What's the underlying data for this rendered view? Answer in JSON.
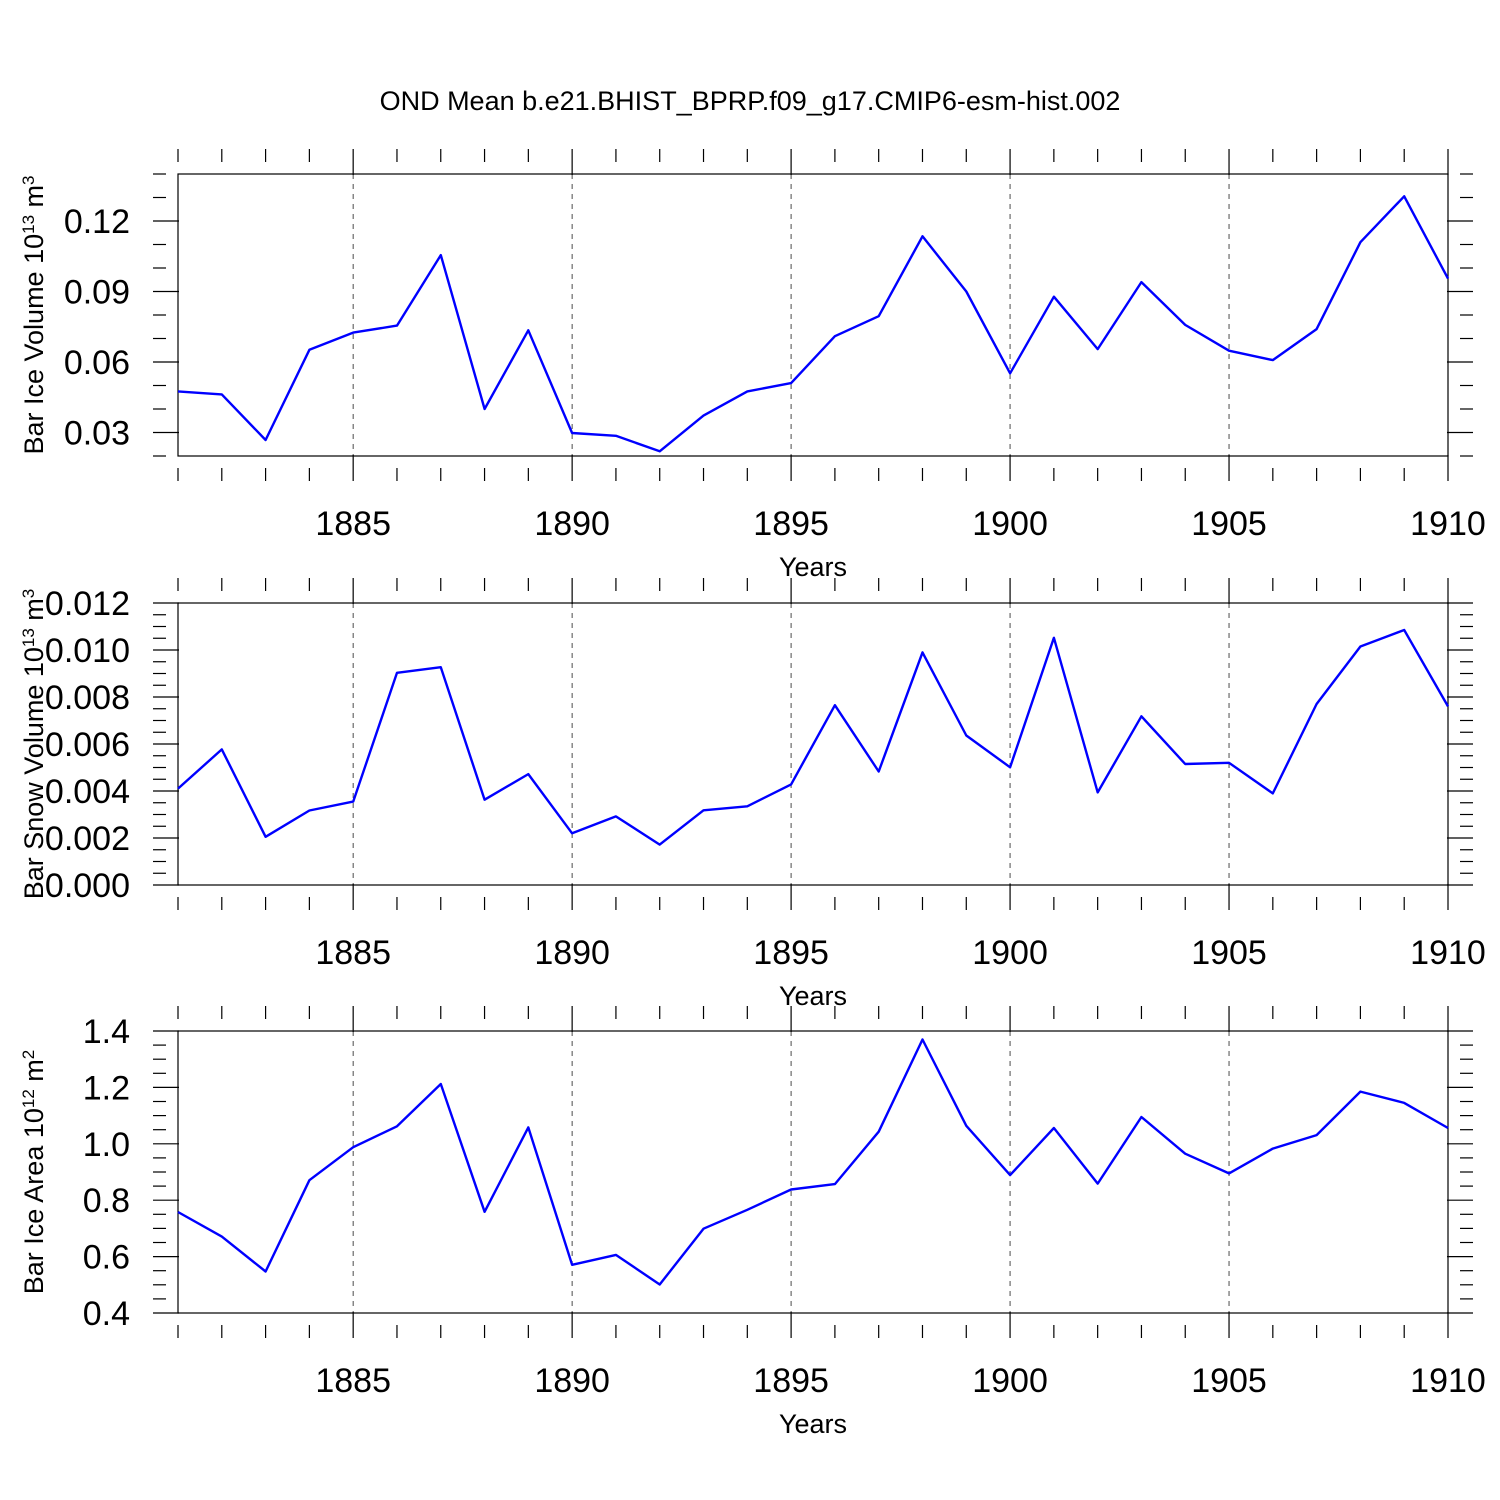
{
  "figure_title": "OND Mean b.e21.BHIST_BPRP.f09_g17.CMIP6-esm-hist.002",
  "colors": {
    "series": "#0000ff",
    "axes": "#000000",
    "background": "#ffffff"
  },
  "chart_data": [
    {
      "type": "line",
      "title": "",
      "ylabel_main": "Bar Ice Volume 10",
      "ylabel_sup": "13",
      "ylabel_unit": " m",
      "ylabel_unit_sup": "3",
      "xlabel": "Years",
      "xlim": [
        1881,
        1910
      ],
      "ylim": [
        0.02,
        0.14
      ],
      "x_ticks": [
        1885,
        1890,
        1895,
        1900,
        1905,
        1910
      ],
      "x_tick_labels": [
        "1885",
        "1890",
        "1895",
        "1900",
        "1905",
        "1910"
      ],
      "x_minor_step": 1,
      "y_ticks": [
        0.03,
        0.06,
        0.09,
        0.12
      ],
      "y_tick_labels": [
        "0.03",
        "0.06",
        "0.09",
        "0.12"
      ],
      "y_minor_step": 0.01,
      "grid": "dashed vertical at major x ticks",
      "series": [
        {
          "name": "Bar Ice Volume",
          "x": [
            1881,
            1882,
            1883,
            1884,
            1885,
            1886,
            1887,
            1888,
            1889,
            1890,
            1891,
            1892,
            1893,
            1894,
            1895,
            1896,
            1897,
            1898,
            1899,
            1900,
            1901,
            1902,
            1903,
            1904,
            1905,
            1906,
            1907,
            1908,
            1909,
            1910
          ],
          "values": [
            0.0475,
            0.0462,
            0.0268,
            0.0652,
            0.0725,
            0.0755,
            0.1055,
            0.04,
            0.0735,
            0.0298,
            0.0286,
            0.022,
            0.0372,
            0.0475,
            0.051,
            0.071,
            0.0795,
            0.1135,
            0.09,
            0.0552,
            0.0878,
            0.0655,
            0.094,
            0.0758,
            0.0648,
            0.0608,
            0.074,
            0.111,
            0.1305,
            0.0955
          ]
        }
      ]
    },
    {
      "type": "line",
      "title": "",
      "ylabel_main": "Bar Snow Volume 10",
      "ylabel_sup": "13",
      "ylabel_unit": " m",
      "ylabel_unit_sup": "3",
      "xlabel": "Years",
      "xlim": [
        1881,
        1910
      ],
      "ylim": [
        0.0,
        0.012
      ],
      "x_ticks": [
        1885,
        1890,
        1895,
        1900,
        1905,
        1910
      ],
      "x_tick_labels": [
        "1885",
        "1890",
        "1895",
        "1900",
        "1905",
        "1910"
      ],
      "x_minor_step": 1,
      "y_ticks": [
        0.0,
        0.002,
        0.004,
        0.006,
        0.008,
        0.01,
        0.012
      ],
      "y_tick_labels": [
        "0.000",
        "0.002",
        "0.004",
        "0.006",
        "0.008",
        "0.010",
        "0.012"
      ],
      "y_minor_step": 0.0005,
      "grid": "dashed vertical at major x ticks",
      "series": [
        {
          "name": "Bar Snow Volume",
          "x": [
            1881,
            1882,
            1883,
            1884,
            1885,
            1886,
            1887,
            1888,
            1889,
            1890,
            1891,
            1892,
            1893,
            1894,
            1895,
            1896,
            1897,
            1898,
            1899,
            1900,
            1901,
            1902,
            1903,
            1904,
            1905,
            1906,
            1907,
            1908,
            1909,
            1910
          ],
          "values": [
            0.0041,
            0.00577,
            0.00205,
            0.00317,
            0.00355,
            0.00903,
            0.00927,
            0.00363,
            0.00472,
            0.0022,
            0.00292,
            0.00172,
            0.00318,
            0.00335,
            0.00428,
            0.00765,
            0.00483,
            0.0099,
            0.00636,
            0.00501,
            0.01052,
            0.00394,
            0.00718,
            0.00515,
            0.0052,
            0.0039,
            0.0077,
            0.01015,
            0.01085,
            0.0076
          ]
        }
      ]
    },
    {
      "type": "line",
      "title": "",
      "ylabel_main": "Bar Ice Area 10",
      "ylabel_sup": "12",
      "ylabel_unit": " m",
      "ylabel_unit_sup": "2",
      "xlabel": "Years",
      "xlim": [
        1881,
        1910
      ],
      "ylim": [
        0.4,
        1.4
      ],
      "x_ticks": [
        1885,
        1890,
        1895,
        1900,
        1905,
        1910
      ],
      "x_tick_labels": [
        "1885",
        "1890",
        "1895",
        "1900",
        "1905",
        "1910"
      ],
      "x_minor_step": 1,
      "y_ticks": [
        0.4,
        0.6,
        0.8,
        1.0,
        1.2,
        1.4
      ],
      "y_tick_labels": [
        "0.4",
        "0.6",
        "0.8",
        "1.0",
        "1.2",
        "1.4"
      ],
      "y_minor_step": 0.05,
      "grid": "dashed vertical at major x ticks",
      "series": [
        {
          "name": "Bar Ice Area",
          "x": [
            1881,
            1882,
            1883,
            1884,
            1885,
            1886,
            1887,
            1888,
            1889,
            1890,
            1891,
            1892,
            1893,
            1894,
            1895,
            1896,
            1897,
            1898,
            1899,
            1900,
            1901,
            1902,
            1903,
            1904,
            1905,
            1906,
            1907,
            1908,
            1909,
            1910
          ],
          "values": [
            0.758,
            0.671,
            0.547,
            0.871,
            0.988,
            1.062,
            1.212,
            0.759,
            1.058,
            0.571,
            0.606,
            0.501,
            0.699,
            0.766,
            0.838,
            0.857,
            1.043,
            1.37,
            1.064,
            0.889,
            1.056,
            0.859,
            1.095,
            0.965,
            0.895,
            0.983,
            1.031,
            1.185,
            1.145,
            1.056
          ]
        }
      ]
    }
  ]
}
